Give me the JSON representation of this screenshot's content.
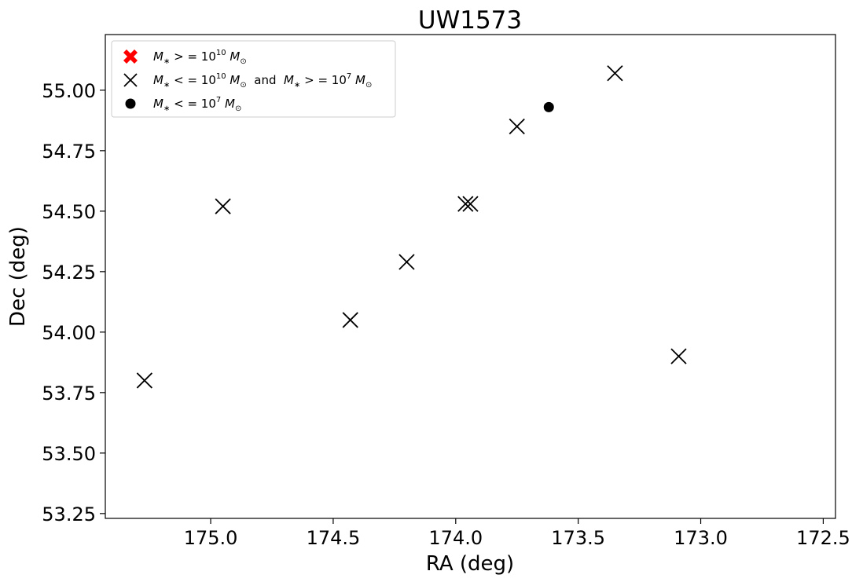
{
  "chart_data": {
    "type": "scatter",
    "title": "UW1573",
    "xlabel": "RA (deg)",
    "ylabel": "Dec (deg)",
    "xlim": [
      175.43,
      172.45
    ],
    "ylim": [
      53.23,
      55.23
    ],
    "x_inverted": true,
    "grid": false,
    "legend_position": "top-left",
    "x_ticks": [
      175.0,
      174.5,
      174.0,
      173.5,
      173.0,
      172.5
    ],
    "x_tick_labels": [
      "175.0",
      "174.5",
      "174.0",
      "173.5",
      "173.0",
      "172.5"
    ],
    "y_ticks": [
      53.25,
      53.5,
      53.75,
      54.0,
      54.25,
      54.5,
      54.75,
      55.0
    ],
    "y_tick_labels": [
      "53.25",
      "53.50",
      "53.75",
      "54.00",
      "54.25",
      "54.50",
      "54.75",
      "55.00"
    ],
    "series": [
      {
        "name": "M* >= 10^10 M☉",
        "legend_main": "M",
        "legend_sub": "∗",
        "legend_rest": " > = 10",
        "legend_sup": "10",
        "legend_tail": " M",
        "legend_tail_sub": "⊙",
        "marker": "filled-x",
        "color": "#ff0000",
        "points": []
      },
      {
        "name": "M* <= 10^10 M☉ and M* >= 10^7 M☉",
        "marker": "x",
        "color": "#000000",
        "points": [
          {
            "x": 175.27,
            "y": 53.8
          },
          {
            "x": 174.95,
            "y": 54.52
          },
          {
            "x": 174.43,
            "y": 54.05
          },
          {
            "x": 174.2,
            "y": 54.29
          },
          {
            "x": 173.96,
            "y": 54.53
          },
          {
            "x": 173.94,
            "y": 54.53
          },
          {
            "x": 173.75,
            "y": 54.85
          },
          {
            "x": 173.35,
            "y": 55.07
          },
          {
            "x": 173.09,
            "y": 53.9
          }
        ]
      },
      {
        "name": "M* <= 10^7 M☉",
        "marker": "circle",
        "color": "#000000",
        "points": [
          {
            "x": 173.62,
            "y": 54.93
          }
        ]
      }
    ]
  },
  "legend": {
    "label_1_prefix": "M",
    "label_1_sub": "∗",
    "label_1_op": " > = 10",
    "label_1_exp": "10",
    "label_1_unit": " M",
    "label_1_unit_sub": "⊙",
    "label_2_prefix": "M",
    "label_2_sub": "∗",
    "label_2_op": " < = 10",
    "label_2_exp": "10",
    "label_2_unit": " M",
    "label_2_unit_sub": "⊙",
    "label_2_and": "  and  ",
    "label_2_prefix_b": "M",
    "label_2_sub_b": "∗",
    "label_2_op_b": " > = 10",
    "label_2_exp_b": "7",
    "label_2_unit_b": " M",
    "label_2_unit_sub_b": "⊙",
    "label_3_prefix": "M",
    "label_3_sub": "∗",
    "label_3_op": " < = 10",
    "label_3_exp": "7",
    "label_3_unit": " M",
    "label_3_unit_sub": "⊙"
  }
}
